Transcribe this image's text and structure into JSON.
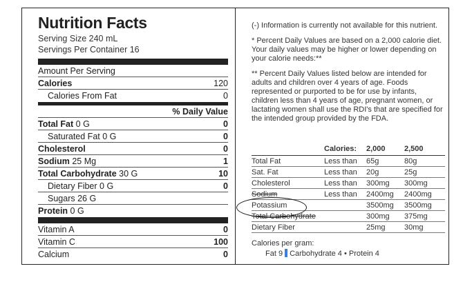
{
  "label": {
    "title": "Nutrition Facts",
    "serving_size": "Serving Size 240 mL",
    "servings_per_container": "Servings Per Container 16",
    "amount_per_serving": "Amount Per Serving",
    "calories_label": "Calories",
    "calories_value": "120",
    "calories_from_fat_label": "Calories From Fat",
    "calories_from_fat_value": "0",
    "daily_value_header": "% Daily Value",
    "nutrients": [
      {
        "name": "Total Fat",
        "amount": "0 G",
        "dv": "0"
      },
      {
        "name": "Saturated Fat",
        "amount": "0 G",
        "dv": "0"
      },
      {
        "name": "Cholesterol",
        "amount": "",
        "dv": "0"
      },
      {
        "name": "Sodium",
        "amount": "25 Mg",
        "dv": "1"
      },
      {
        "name": "Total Carbohydrate",
        "amount": "30 G",
        "dv": "10"
      },
      {
        "name": "Dietary Fiber",
        "amount": "0 G",
        "dv": "0"
      },
      {
        "name": "Sugars",
        "amount": "26 G",
        "dv": ""
      },
      {
        "name": "Protein",
        "amount": "0 G",
        "dv": ""
      }
    ],
    "vitamins": [
      {
        "name": "Vitamin A",
        "dv": "0"
      },
      {
        "name": "Vitamin C",
        "dv": "100"
      },
      {
        "name": "Calcium",
        "dv": "0"
      }
    ]
  },
  "notes": {
    "not_available": "(-) Information is currently not available for this nutrient.",
    "percent_dv": "* Percent Daily Values are based on a 2,000 calorie diet. Your daily values may be higher or lower depending on your calorie needs:**",
    "percent_dv_intended": "** Percent Daily Values listed below are intended for adults and children over 4 years of age. Foods represented or purported to be for use by infants, children less than 4 years of age, pregnant women, or lactating women shall use the RDI's that are specified for the intended group provided by the FDA."
  },
  "dv_table": {
    "header": {
      "label": "",
      "calories": "Calories:",
      "c2000": "2,000",
      "c2500": "2,500"
    },
    "rows": [
      {
        "name": "Total Fat",
        "qualifier": "Less than",
        "c2000": "65g",
        "c2500": "80g"
      },
      {
        "name": "Sat. Fat",
        "qualifier": "Less than",
        "c2000": "20g",
        "c2500": "25g"
      },
      {
        "name": "Cholesterol",
        "qualifier": "Less than",
        "c2000": "300mg",
        "c2500": "300mg"
      },
      {
        "name": "Sodium",
        "qualifier": "Less than",
        "c2000": "2400mg",
        "c2500": "2400mg"
      },
      {
        "name": "Potassium",
        "qualifier": "",
        "c2000": "3500mg",
        "c2500": "3500mg"
      },
      {
        "name": "Total Carbohydrate",
        "qualifier": "",
        "c2000": "300mg",
        "c2500": "375mg"
      },
      {
        "name": "Dietary Fiber",
        "qualifier": "",
        "c2000": "25mg",
        "c2500": "30mg"
      }
    ]
  },
  "calories_per_gram": {
    "label": "Calories per gram:",
    "fat": "Fat 9",
    "carbohydrate": "Carbohydrate 4",
    "separator": "•",
    "protein": "Protein 4"
  }
}
